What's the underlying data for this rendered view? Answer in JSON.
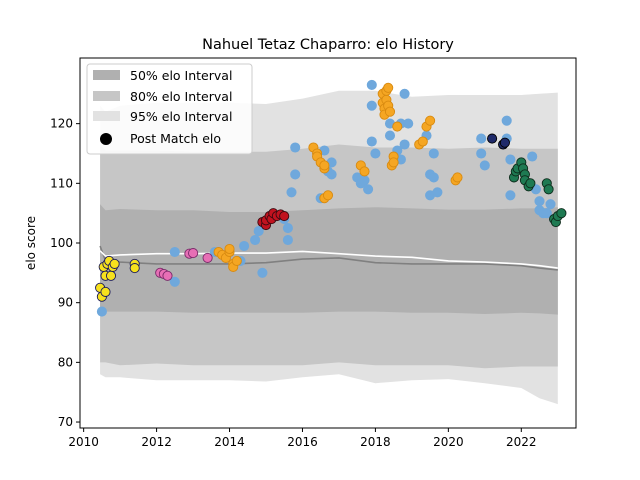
{
  "chart_data": {
    "type": "scatter",
    "title": "Nahuel Tetaz Chaparro: elo History",
    "xlabel": "",
    "ylabel": "elo score",
    "xlim": [
      2009.9,
      2023.5
    ],
    "ylim": [
      69,
      131
    ],
    "x_ticks": [
      2010,
      2012,
      2014,
      2016,
      2018,
      2020,
      2022
    ],
    "y_ticks": [
      70,
      80,
      90,
      100,
      110,
      120
    ],
    "grid": false,
    "legend_position": "top-left",
    "legend": [
      {
        "label": "50% elo Interval",
        "kind": "band",
        "color": "#b0b0b0"
      },
      {
        "label": "80% elo Interval",
        "kind": "band",
        "color": "#c6c6c6"
      },
      {
        "label": "95% elo Interval",
        "kind": "band",
        "color": "#e2e2e2"
      },
      {
        "label": "Post Match elo",
        "kind": "marker",
        "color": "#000000"
      }
    ],
    "bands": {
      "x": [
        2010.45,
        2010.6,
        2011,
        2012,
        2013,
        2014,
        2015,
        2016,
        2017,
        2018,
        2019,
        2020,
        2021,
        2022,
        2022.5,
        2023.0
      ],
      "p95_upper": [
        123,
        122,
        123,
        123.5,
        123.5,
        123.5,
        123.3,
        124.2,
        125.5,
        125.5,
        124.5,
        124.8,
        124.8,
        124.8,
        125,
        125.2
      ],
      "p95_lower": [
        78,
        77.5,
        77.5,
        77,
        77,
        77,
        76.8,
        77.5,
        78,
        76.5,
        77,
        77.2,
        76.5,
        75.7,
        74,
        73
      ],
      "p80_upper": [
        116.5,
        115.5,
        115.5,
        115.5,
        115.3,
        115.3,
        115.3,
        115.8,
        116.5,
        116,
        116,
        115.8,
        116,
        115.8,
        115.8,
        115.8
      ],
      "p80_lower": [
        80,
        80,
        79.5,
        79.8,
        79.5,
        79.5,
        79.5,
        79.5,
        80,
        79.5,
        79.5,
        79.5,
        79,
        79.3,
        79.3,
        79.3
      ],
      "p50_upper": [
        106.5,
        105.5,
        105.7,
        105.5,
        105.5,
        105.2,
        105.2,
        105.5,
        105.8,
        106,
        105.8,
        105.6,
        105.6,
        105.8,
        105.8,
        106
      ],
      "p50_lower": [
        88.3,
        88.5,
        88.5,
        88.5,
        88.3,
        88.3,
        88.3,
        88.3,
        88.5,
        88.5,
        88.3,
        88.3,
        88.1,
        88.3,
        88.2,
        88
      ],
      "median": [
        99.5,
        97,
        96.8,
        96.5,
        96.5,
        96.5,
        96.7,
        97.3,
        97.5,
        96.7,
        96.5,
        96.5,
        96.5,
        96.2,
        95.8,
        95.5
      ],
      "mean": [
        98.7,
        97.8,
        98,
        98.2,
        98.2,
        98.3,
        98.3,
        98.6,
        98.2,
        97.8,
        97.6,
        97,
        96.8,
        96.5,
        96.2,
        95.8
      ]
    },
    "series": [
      {
        "color": "#6fa8dc",
        "outline": "#6fa8dc",
        "points": [
          [
            2010.5,
            88.5
          ],
          [
            2012.5,
            98.5
          ],
          [
            2012.5,
            93.5
          ],
          [
            2013.6,
            98.5
          ],
          [
            2014.3,
            97
          ],
          [
            2014.4,
            99.5
          ],
          [
            2014.7,
            100.5
          ],
          [
            2014.8,
            102
          ],
          [
            2014.9,
            95
          ],
          [
            2015.5,
            104
          ],
          [
            2015.6,
            102.5
          ],
          [
            2015.6,
            100.5
          ],
          [
            2015.7,
            108.5
          ],
          [
            2015.8,
            111.5
          ],
          [
            2015.8,
            116
          ],
          [
            2016.5,
            107.5
          ],
          [
            2016.6,
            115.5
          ],
          [
            2016.7,
            112
          ],
          [
            2016.8,
            113.5
          ],
          [
            2016.8,
            111.5
          ],
          [
            2017.5,
            111
          ],
          [
            2017.6,
            110
          ],
          [
            2017.7,
            110.5
          ],
          [
            2017.8,
            109
          ],
          [
            2017.9,
            126.5
          ],
          [
            2017.9,
            123
          ],
          [
            2017.9,
            117
          ],
          [
            2018.0,
            115
          ],
          [
            2018.4,
            120
          ],
          [
            2018.4,
            118
          ],
          [
            2018.6,
            115.5
          ],
          [
            2018.7,
            114
          ],
          [
            2018.7,
            120
          ],
          [
            2018.8,
            125
          ],
          [
            2018.8,
            116.5
          ],
          [
            2018.9,
            120
          ],
          [
            2019.4,
            118
          ],
          [
            2019.5,
            111.5
          ],
          [
            2019.5,
            108
          ],
          [
            2019.6,
            115
          ],
          [
            2019.6,
            111
          ],
          [
            2019.7,
            108.5
          ],
          [
            2020.9,
            117.5
          ],
          [
            2020.9,
            115
          ],
          [
            2021.0,
            113
          ],
          [
            2021.6,
            120.5
          ],
          [
            2021.6,
            117.5
          ],
          [
            2021.7,
            114
          ],
          [
            2021.7,
            108
          ],
          [
            2022.3,
            114.5
          ],
          [
            2022.4,
            109
          ],
          [
            2022.5,
            107
          ],
          [
            2022.5,
            105.5
          ],
          [
            2022.6,
            105
          ],
          [
            2022.7,
            105
          ],
          [
            2022.8,
            106.5
          ],
          [
            2022.9,
            104
          ]
        ]
      },
      {
        "color": "#f7e11d",
        "outline": "#1a1a5a",
        "points": [
          [
            2010.45,
            92.5
          ],
          [
            2010.5,
            91
          ],
          [
            2010.55,
            96
          ],
          [
            2010.6,
            91.8
          ],
          [
            2010.6,
            94.5
          ],
          [
            2010.65,
            96.5
          ],
          [
            2010.7,
            97
          ],
          [
            2010.75,
            94.5
          ],
          [
            2010.8,
            96
          ],
          [
            2010.85,
            96.5
          ],
          [
            2011.4,
            96.5
          ],
          [
            2011.4,
            95.8
          ]
        ]
      },
      {
        "color": "#e76fb5",
        "outline": "#7a2a6a",
        "points": [
          [
            2012.1,
            95
          ],
          [
            2012.2,
            94.8
          ],
          [
            2012.3,
            94.5
          ],
          [
            2012.9,
            98.2
          ],
          [
            2013.0,
            98.3
          ],
          [
            2013.4,
            97.5
          ]
        ]
      },
      {
        "color": "#f5a623",
        "outline": "#d88a10",
        "points": [
          [
            2013.7,
            98.5
          ],
          [
            2013.8,
            98
          ],
          [
            2013.9,
            97.5
          ],
          [
            2014.0,
            98.5
          ],
          [
            2014.0,
            99
          ],
          [
            2014.1,
            96.5
          ],
          [
            2014.1,
            96
          ],
          [
            2014.2,
            97
          ],
          [
            2016.3,
            116
          ],
          [
            2016.4,
            115
          ],
          [
            2016.4,
            114.5
          ],
          [
            2016.5,
            113.5
          ],
          [
            2016.6,
            112.5
          ],
          [
            2016.6,
            113
          ],
          [
            2016.6,
            107.5
          ],
          [
            2016.7,
            108
          ],
          [
            2017.6,
            113
          ],
          [
            2017.7,
            112
          ],
          [
            2018.2,
            125
          ],
          [
            2018.2,
            123.5
          ],
          [
            2018.25,
            122.5
          ],
          [
            2018.25,
            121.5
          ],
          [
            2018.3,
            124
          ],
          [
            2018.3,
            125.5
          ],
          [
            2018.35,
            126
          ],
          [
            2018.35,
            123
          ],
          [
            2018.4,
            122
          ],
          [
            2018.45,
            113
          ],
          [
            2018.5,
            114.5
          ],
          [
            2018.5,
            113.5
          ],
          [
            2018.6,
            119.5
          ],
          [
            2019.2,
            116.5
          ],
          [
            2019.3,
            117
          ],
          [
            2019.4,
            119.5
          ],
          [
            2019.5,
            120.5
          ],
          [
            2020.2,
            110.5
          ],
          [
            2020.25,
            111
          ]
        ]
      },
      {
        "color": "#c1121f",
        "outline": "#3a0a10",
        "points": [
          [
            2014.9,
            103.5
          ],
          [
            2015.0,
            103
          ],
          [
            2015.0,
            103.8
          ],
          [
            2015.1,
            104.5
          ],
          [
            2015.15,
            104
          ],
          [
            2015.2,
            105
          ],
          [
            2015.3,
            104.5
          ],
          [
            2015.4,
            104.8
          ],
          [
            2015.5,
            104.5
          ]
        ]
      },
      {
        "color": "#1f2a6a",
        "outline": "#000000",
        "points": [
          [
            2021.2,
            117.5
          ],
          [
            2021.5,
            116.5
          ],
          [
            2021.55,
            116.8
          ]
        ]
      },
      {
        "color": "#1e7a52",
        "outline": "#0d2a1a",
        "points": [
          [
            2021.8,
            111
          ],
          [
            2021.85,
            112
          ],
          [
            2021.9,
            112.5
          ],
          [
            2022.0,
            113.5
          ],
          [
            2022.05,
            112.5
          ],
          [
            2022.1,
            111.5
          ],
          [
            2022.1,
            110.5
          ],
          [
            2022.2,
            109.5
          ],
          [
            2022.25,
            110
          ],
          [
            2022.7,
            110
          ],
          [
            2022.75,
            109
          ],
          [
            2022.9,
            104
          ],
          [
            2022.95,
            103.5
          ],
          [
            2023.0,
            104.5
          ],
          [
            2023.1,
            105
          ]
        ]
      }
    ]
  }
}
